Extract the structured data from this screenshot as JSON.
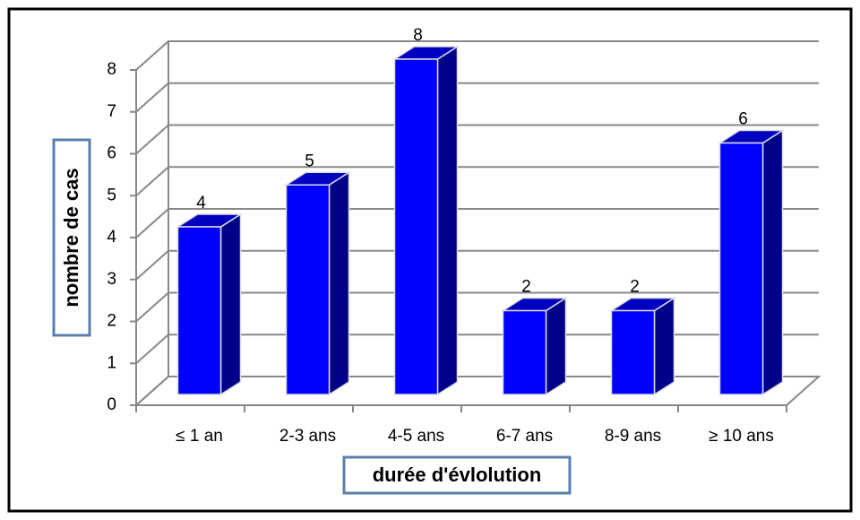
{
  "chart_data": {
    "type": "bar3d",
    "x_label": "durée d'évlolution",
    "y_label": "nombre de cas",
    "categories": [
      "≤ 1 an",
      "2-3 ans",
      "4-5 ans",
      "6-7 ans",
      "8-9 ans",
      "≥ 10 ans"
    ],
    "values": [
      4,
      5,
      8,
      2,
      2,
      6
    ],
    "color": "#0000ff",
    "ylim": [
      0,
      8
    ],
    "yticks": [
      0,
      1,
      2,
      3,
      4,
      5,
      6,
      7,
      8
    ],
    "grid": true
  }
}
